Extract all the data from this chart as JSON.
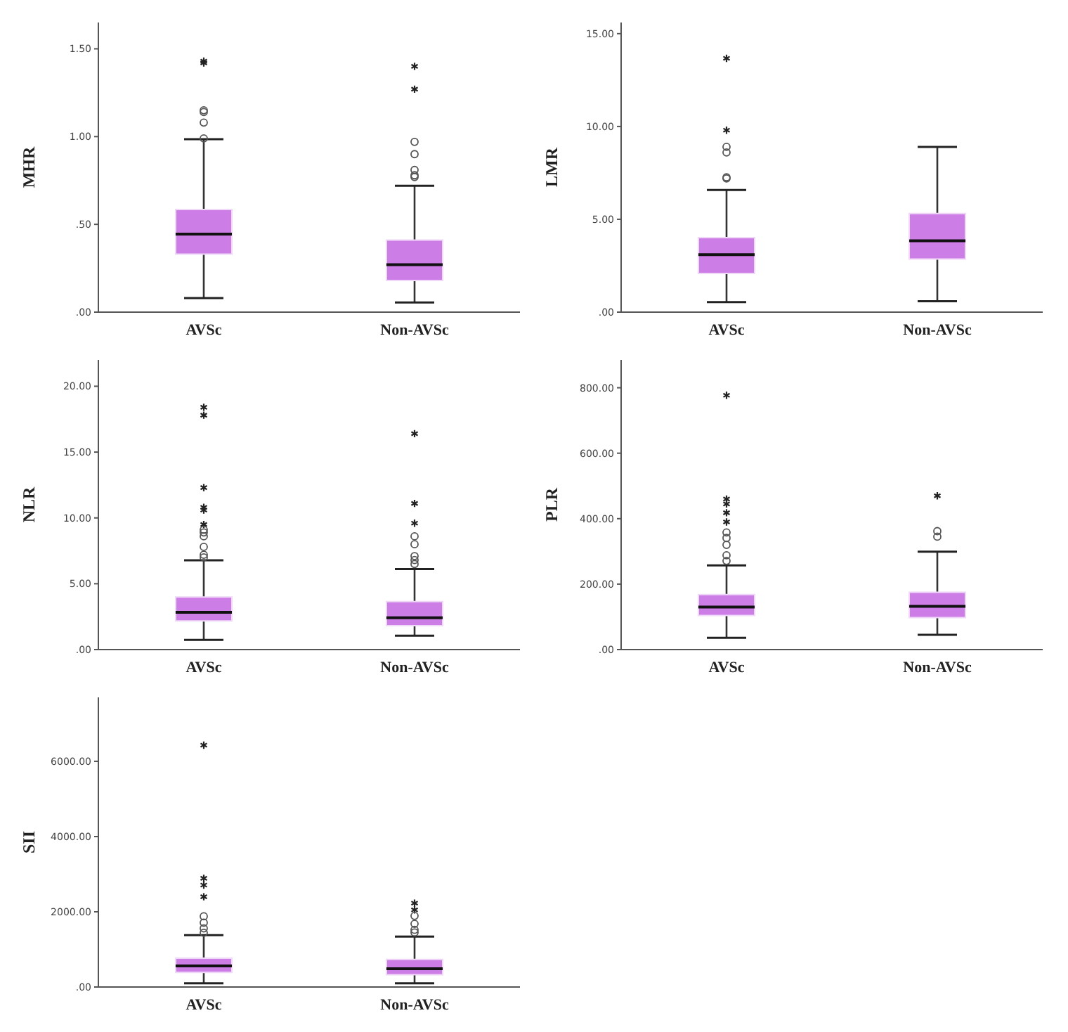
{
  "chart_data": [
    {
      "type": "box",
      "categories": [
        "AVSc",
        "Non-AVSc"
      ],
      "ylabel": "MHR",
      "color": "#cc7de6",
      "grid": false,
      "ylim": [
        0,
        1.65
      ],
      "yticks": [
        {
          "value": 0,
          "label": ".00"
        },
        {
          "value": 0.5,
          "label": ".50"
        },
        {
          "value": 1,
          "label": "1.00"
        },
        {
          "value": 1.5,
          "label": "1.50"
        }
      ],
      "boxes": [
        {
          "low": 0.08,
          "q1": 0.33,
          "median": 0.445,
          "q3": 0.585,
          "high": 0.985,
          "outliers": [
            1.43,
            1.42,
            1.15,
            1.14,
            1.08,
            0.99
          ]
        },
        {
          "low": 0.055,
          "q1": 0.18,
          "median": 0.27,
          "q3": 0.41,
          "high": 0.72,
          "outliers": [
            1.4,
            1.27,
            0.97,
            0.9,
            0.81,
            0.78,
            0.77
          ]
        }
      ]
    },
    {
      "type": "box",
      "categories": [
        "AVSc",
        "Non-AVSc"
      ],
      "ylabel": "LMR",
      "color": "#cc7de6",
      "grid": false,
      "ylim": [
        0,
        15.6
      ],
      "yticks": [
        {
          "value": 0,
          "label": ".00"
        },
        {
          "value": 5,
          "label": "5.00"
        },
        {
          "value": 10,
          "label": "10.00"
        },
        {
          "value": 15,
          "label": "15.00"
        }
      ],
      "boxes": [
        {
          "low": 0.54,
          "q1": 2.08,
          "median": 3.1,
          "q3": 4.01,
          "high": 6.58,
          "outliers": [
            13.67,
            9.8,
            8.9,
            8.6,
            7.26,
            7.2
          ]
        },
        {
          "low": 0.59,
          "q1": 2.86,
          "median": 3.84,
          "q3": 5.31,
          "high": 8.9
        }
      ]
    },
    {
      "type": "box",
      "categories": [
        "AVSc",
        "Non-AVSc"
      ],
      "ylabel": "NLR",
      "color": "#cc7de6",
      "grid": false,
      "ylim": [
        0,
        22
      ],
      "yticks": [
        {
          "value": 0,
          "label": ".00"
        },
        {
          "value": 5,
          "label": "5.00"
        },
        {
          "value": 10,
          "label": "10.00"
        },
        {
          "value": 15,
          "label": "15.00"
        },
        {
          "value": 20,
          "label": "20.00"
        }
      ],
      "boxes": [
        {
          "low": 0.73,
          "q1": 2.17,
          "median": 2.83,
          "q3": 3.99,
          "high": 6.78,
          "outliers": [
            18.4,
            17.8,
            12.3,
            10.8,
            10.6,
            9.5,
            9.1,
            8.9,
            8.6,
            7.8,
            7.2,
            7.0
          ]
        },
        {
          "low": 1.05,
          "q1": 1.82,
          "median": 2.41,
          "q3": 3.64,
          "high": 6.12,
          "outliers": [
            16.4,
            11.1,
            9.6,
            8.6,
            8.0,
            7.1,
            6.8,
            6.5
          ]
        }
      ]
    },
    {
      "type": "box",
      "categories": [
        "AVSc",
        "Non-AVSc"
      ],
      "ylabel": "PLR",
      "color": "#cc7de6",
      "grid": false,
      "ylim": [
        0,
        885
      ],
      "yticks": [
        {
          "value": 0,
          "label": ".00"
        },
        {
          "value": 200,
          "label": "200.00"
        },
        {
          "value": 400,
          "label": "400.00"
        },
        {
          "value": 600,
          "label": "600.00"
        },
        {
          "value": 800,
          "label": "800.00"
        }
      ],
      "boxes": [
        {
          "low": 36,
          "q1": 104,
          "median": 130,
          "q3": 168,
          "high": 257,
          "outliers": [
            777,
            460,
            445,
            418,
            390,
            358,
            341,
            320,
            288,
            271
          ]
        },
        {
          "low": 45,
          "q1": 98,
          "median": 132,
          "q3": 175,
          "high": 299,
          "outliers": [
            470,
            362,
            345
          ]
        }
      ]
    },
    {
      "type": "box",
      "categories": [
        "AVSc",
        "Non-AVSc"
      ],
      "ylabel": "SII",
      "color": "#cc7de6",
      "grid": false,
      "ylim": [
        0,
        7700
      ],
      "yticks": [
        {
          "value": 0,
          "label": ".00"
        },
        {
          "value": 2000,
          "label": "2000.00"
        },
        {
          "value": 4000,
          "label": "4000.00"
        },
        {
          "value": 6000,
          "label": "6000.00"
        }
      ],
      "boxes": [
        {
          "low": 98,
          "q1": 390,
          "median": 561,
          "q3": 768,
          "high": 1378,
          "outliers": [
            6430,
            2890,
            2710,
            2400,
            1880,
            1710,
            1560,
            1440
          ]
        },
        {
          "low": 98,
          "q1": 329,
          "median": 488,
          "q3": 732,
          "high": 1341,
          "outliers": [
            2230,
            2050,
            1890,
            1680,
            1520,
            1450
          ]
        }
      ]
    }
  ]
}
